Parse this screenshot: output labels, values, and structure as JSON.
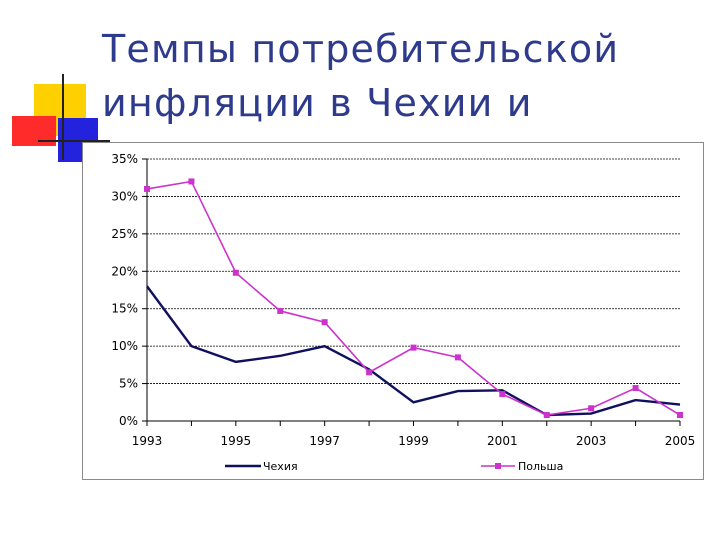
{
  "slide": {
    "title_line1": "Темпы потребительской",
    "title_line2": "инфляции в Чехии и"
  },
  "colors": {
    "czech": "#10105e",
    "poland": "#cc33cc",
    "title": "#2e3a8c",
    "deco_yellow": "#ffd000",
    "deco_red": "#ff2a2a",
    "deco_blue": "#2323dd"
  },
  "chart_data": {
    "type": "line",
    "title": "",
    "xlabel": "",
    "ylabel": "",
    "x": [
      1993,
      1994,
      1995,
      1996,
      1997,
      1998,
      1999,
      2000,
      2001,
      2002,
      2003,
      2004,
      2005
    ],
    "series": [
      {
        "name": "Чехия",
        "values": [
          0.18,
          0.1,
          0.079,
          0.087,
          0.1,
          0.069,
          0.025,
          0.04,
          0.041,
          0.008,
          0.01,
          0.028,
          0.022
        ]
      },
      {
        "name": "Польша",
        "values": [
          0.31,
          0.32,
          0.198,
          0.147,
          0.132,
          0.065,
          0.098,
          0.085,
          0.036,
          0.008,
          0.017,
          0.044,
          0.008
        ]
      }
    ],
    "xlim": [
      1993,
      2005
    ],
    "ylim": [
      0,
      0.35
    ],
    "x_ticks": [
      "1993",
      "1995",
      "1997",
      "1999",
      "2001",
      "2003",
      "2005"
    ],
    "y_ticks": [
      "0%",
      "5%",
      "10%",
      "15%",
      "20%",
      "25%",
      "30%",
      "35%"
    ],
    "grid": "horizontal dashed",
    "legend": "bottom"
  }
}
